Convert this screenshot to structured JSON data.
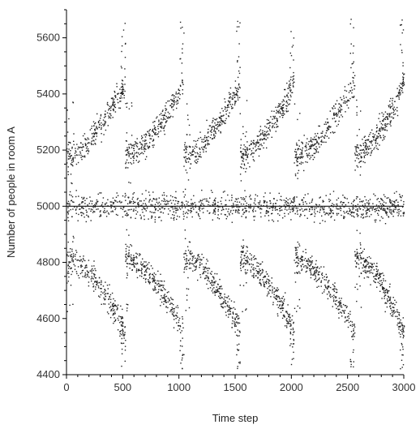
{
  "chart_data": {
    "type": "scatter",
    "title": "",
    "xlabel": "Time step",
    "ylabel": "Number of people in room A",
    "xlim": [
      0,
      3000
    ],
    "ylim": [
      4400,
      5700
    ],
    "xticks": [
      0,
      500,
      1000,
      1500,
      2000,
      2500,
      3000
    ],
    "yticks": [
      4400,
      4600,
      4800,
      5000,
      5200,
      5400,
      5600
    ],
    "xtick_labels": [
      "0",
      "500",
      "1000",
      "1500",
      "2000",
      "2500",
      "3000"
    ],
    "ytick_labels": [
      "4400",
      "4600",
      "4800",
      "5000",
      "5200",
      "5400",
      "5600"
    ],
    "grid": false,
    "legend": "none",
    "reference_line": {
      "y": 5000
    },
    "colors": {
      "points": "#222222",
      "axes": "#000000",
      "reference_line": "#111111"
    },
    "series": [
      {
        "description_free_values": true,
        "bands": [
          {
            "center": 5000,
            "spread": 80
          },
          {
            "center_pattern": "upper_sawtooth",
            "low": 5200,
            "high": 5650
          },
          {
            "center_pattern": "lower_sawtooth",
            "low": 4450,
            "high": 4800
          }
        ],
        "x_range": [
          0,
          3000
        ],
        "period": 520,
        "phases": [
          0,
          520,
          1040,
          1540,
          2020,
          2560
        ],
        "n_points": 2600
      }
    ]
  }
}
